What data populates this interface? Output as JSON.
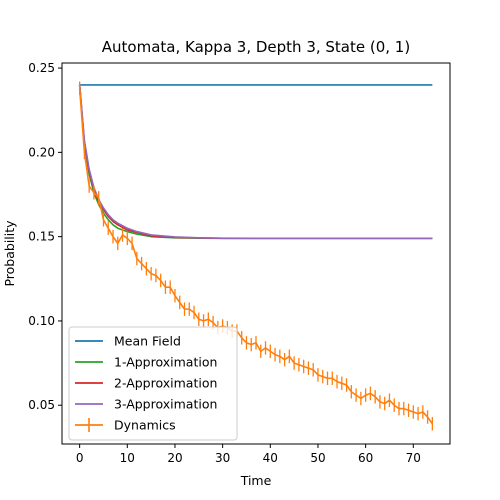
{
  "chart_data": {
    "type": "line",
    "title": "Automata, Kappa 3, Depth 3, State (0, 1)",
    "xlabel": "Time",
    "ylabel": "Probability",
    "xlim": [
      -3.7,
      77.7
    ],
    "ylim": [
      0.027,
      0.253
    ],
    "xticks": [
      0,
      10,
      20,
      30,
      40,
      50,
      60,
      70
    ],
    "xtick_labels": [
      "0",
      "10",
      "20",
      "30",
      "40",
      "50",
      "60",
      "70"
    ],
    "yticks": [
      0.05,
      0.1,
      0.15,
      0.2,
      0.25
    ],
    "ytick_labels": [
      "0.05",
      "0.10",
      "0.15",
      "0.20",
      "0.25"
    ],
    "legend_position": "lower-left",
    "grid": false,
    "series": [
      {
        "name": "Mean Field",
        "color": "#1f77b4",
        "kind": "line",
        "x": [
          0,
          74
        ],
        "y": [
          0.24,
          0.24
        ]
      },
      {
        "name": "1-Approximation",
        "color": "#2ca02c",
        "kind": "line",
        "x": [
          0,
          1,
          2,
          3,
          4,
          5,
          6,
          7,
          8,
          10,
          12,
          15,
          20,
          25,
          30,
          40,
          50,
          60,
          74
        ],
        "y": [
          0.24,
          0.205,
          0.187,
          0.176,
          0.169,
          0.164,
          0.16,
          0.157,
          0.155,
          0.153,
          0.1515,
          0.15,
          0.1493,
          0.1491,
          0.149,
          0.149,
          0.149,
          0.149,
          0.149
        ]
      },
      {
        "name": "2-Approximation",
        "color": "#d62728",
        "kind": "line",
        "x": [
          0,
          1,
          2,
          3,
          4,
          5,
          6,
          7,
          8,
          10,
          12,
          15,
          20,
          25,
          30,
          40,
          50,
          60,
          74
        ],
        "y": [
          0.24,
          0.206,
          0.189,
          0.178,
          0.171,
          0.166,
          0.162,
          0.159,
          0.157,
          0.154,
          0.1525,
          0.1505,
          0.1495,
          0.1492,
          0.149,
          0.149,
          0.149,
          0.149,
          0.149
        ]
      },
      {
        "name": "3-Approximation",
        "color": "#9467bd",
        "kind": "line",
        "x": [
          0,
          1,
          2,
          3,
          4,
          5,
          6,
          7,
          8,
          10,
          12,
          15,
          20,
          25,
          30,
          40,
          50,
          60,
          74
        ],
        "y": [
          0.24,
          0.207,
          0.19,
          0.179,
          0.172,
          0.167,
          0.163,
          0.16,
          0.158,
          0.155,
          0.153,
          0.151,
          0.1498,
          0.1493,
          0.1491,
          0.149,
          0.149,
          0.149,
          0.149
        ]
      },
      {
        "name": "Dynamics",
        "color": "#ff7f0e",
        "kind": "errorbar",
        "x": [
          0,
          1,
          2,
          3,
          4,
          5,
          6,
          7,
          8,
          9,
          10,
          11,
          12,
          13,
          14,
          15,
          16,
          17,
          18,
          19,
          20,
          21,
          22,
          23,
          24,
          25,
          26,
          27,
          28,
          29,
          30,
          31,
          32,
          33,
          34,
          35,
          36,
          37,
          38,
          39,
          40,
          41,
          42,
          43,
          44,
          45,
          46,
          47,
          48,
          49,
          50,
          51,
          52,
          53,
          54,
          55,
          56,
          57,
          58,
          59,
          60,
          61,
          62,
          63,
          64,
          65,
          66,
          67,
          68,
          69,
          70,
          71,
          72,
          73,
          74
        ],
        "y": [
          0.238,
          0.2,
          0.18,
          0.176,
          0.173,
          0.16,
          0.155,
          0.15,
          0.146,
          0.151,
          0.149,
          0.146,
          0.137,
          0.134,
          0.131,
          0.128,
          0.127,
          0.124,
          0.12,
          0.12,
          0.115,
          0.111,
          0.107,
          0.107,
          0.105,
          0.101,
          0.1,
          0.101,
          0.099,
          0.096,
          0.097,
          0.096,
          0.094,
          0.094,
          0.09,
          0.087,
          0.086,
          0.087,
          0.082,
          0.084,
          0.082,
          0.08,
          0.079,
          0.077,
          0.079,
          0.075,
          0.074,
          0.073,
          0.072,
          0.071,
          0.068,
          0.067,
          0.066,
          0.066,
          0.064,
          0.063,
          0.062,
          0.058,
          0.056,
          0.054,
          0.056,
          0.057,
          0.055,
          0.052,
          0.051,
          0.053,
          0.05,
          0.048,
          0.048,
          0.047,
          0.046,
          0.045,
          0.046,
          0.043,
          0.039
        ],
        "yerr": 0.004
      }
    ]
  }
}
